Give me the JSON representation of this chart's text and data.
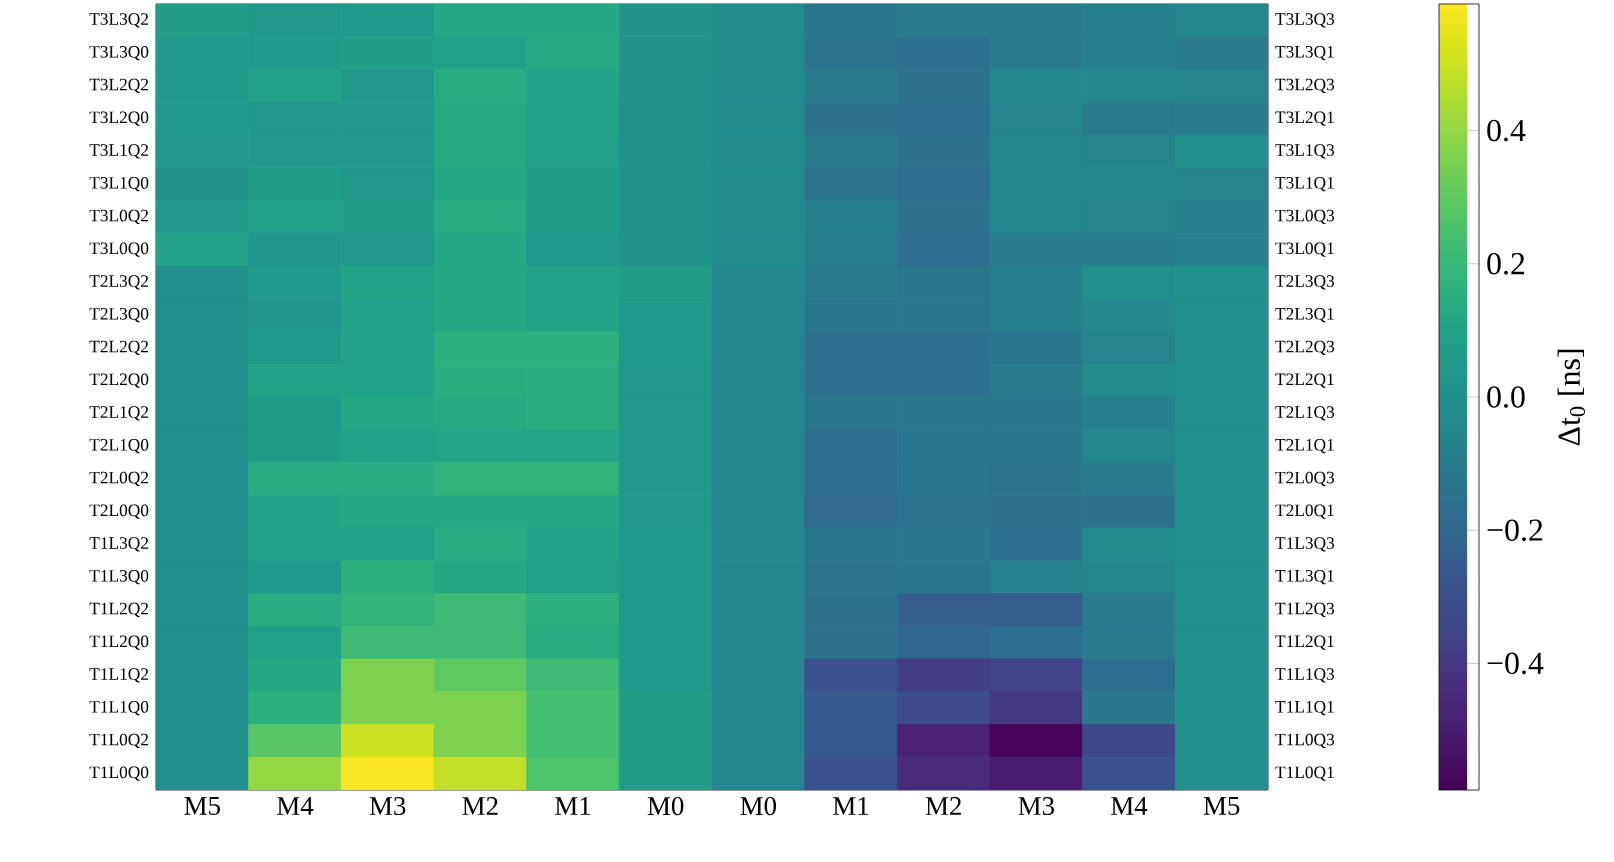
{
  "chart_data": {
    "type": "heatmap",
    "categories": [
      "M5",
      "M4",
      "M3",
      "M2",
      "M1",
      "M0",
      "M0",
      "M1",
      "M2",
      "M3",
      "M4",
      "M5"
    ],
    "y_categories": [
      "T3L3Q2",
      "T3L3Q0",
      "T3L2Q2",
      "T3L2Q0",
      "T3L1Q2",
      "T3L1Q0",
      "T3L0Q2",
      "T3L0Q0",
      "T2L3Q2",
      "T2L3Q0",
      "T2L2Q2",
      "T2L2Q0",
      "T2L1Q2",
      "T2L1Q0",
      "T2L0Q2",
      "T2L0Q0",
      "T1L3Q2",
      "T1L3Q0",
      "T1L2Q2",
      "T1L2Q0",
      "T1L1Q2",
      "T1L1Q0",
      "T1L0Q2",
      "T1L0Q0"
    ],
    "y2_categories": [
      "T3L3Q3",
      "T3L3Q1",
      "T3L2Q3",
      "T3L2Q1",
      "T3L1Q3",
      "T3L1Q1",
      "T3L0Q3",
      "T3L0Q1",
      "T2L3Q3",
      "T2L3Q1",
      "T2L2Q3",
      "T2L2Q1",
      "T2L1Q3",
      "T2L1Q1",
      "T2L0Q3",
      "T2L0Q1",
      "T1L3Q3",
      "T1L3Q1",
      "T1L2Q3",
      "T1L2Q1",
      "T1L1Q3",
      "T1L1Q1",
      "T1L0Q3",
      "T1L0Q1"
    ],
    "cells": [
      [
        0.06,
        0.04,
        0.05,
        0.12,
        0.12,
        0.02,
        -0.02,
        -0.12,
        -0.1,
        -0.1,
        -0.08,
        -0.05
      ],
      [
        0.05,
        0.05,
        0.07,
        0.08,
        0.13,
        0.02,
        -0.02,
        -0.13,
        -0.15,
        -0.1,
        -0.08,
        -0.1
      ],
      [
        0.05,
        0.08,
        0.04,
        0.14,
        0.1,
        0.01,
        -0.02,
        -0.1,
        -0.14,
        -0.04,
        -0.04,
        -0.06
      ],
      [
        0.05,
        0.04,
        0.04,
        0.13,
        0.09,
        0.01,
        -0.02,
        -0.14,
        -0.16,
        -0.06,
        -0.1,
        -0.1
      ],
      [
        0.04,
        0.04,
        0.04,
        0.13,
        0.08,
        0.01,
        -0.02,
        -0.1,
        -0.14,
        -0.05,
        -0.06,
        0.0
      ],
      [
        0.02,
        0.07,
        0.04,
        0.12,
        0.07,
        0.01,
        -0.02,
        -0.13,
        -0.17,
        -0.05,
        -0.05,
        -0.06
      ],
      [
        0.04,
        0.08,
        0.07,
        0.14,
        0.07,
        0.01,
        -0.02,
        -0.08,
        -0.14,
        -0.05,
        -0.06,
        -0.08
      ],
      [
        0.1,
        0.03,
        0.04,
        0.12,
        0.05,
        0.01,
        -0.02,
        -0.09,
        -0.17,
        -0.1,
        -0.1,
        -0.08
      ],
      [
        0.0,
        0.05,
        0.1,
        0.12,
        0.1,
        0.06,
        -0.05,
        -0.1,
        -0.12,
        -0.08,
        0.0,
        0.0
      ],
      [
        0.0,
        0.03,
        0.08,
        0.12,
        0.1,
        0.05,
        -0.05,
        -0.12,
        -0.12,
        -0.08,
        -0.04,
        0.0
      ],
      [
        0.0,
        0.05,
        0.08,
        0.16,
        0.16,
        0.05,
        -0.05,
        -0.15,
        -0.15,
        -0.12,
        -0.06,
        0.0
      ],
      [
        0.0,
        0.1,
        0.1,
        0.15,
        0.15,
        0.04,
        -0.05,
        -0.15,
        -0.15,
        -0.1,
        -0.02,
        0.0
      ],
      [
        0.0,
        0.07,
        0.12,
        0.13,
        0.15,
        0.04,
        -0.05,
        -0.12,
        -0.12,
        -0.12,
        -0.08,
        0.0
      ],
      [
        0.0,
        0.07,
        0.1,
        0.11,
        0.11,
        0.04,
        -0.05,
        -0.16,
        -0.12,
        -0.12,
        -0.05,
        0.0
      ],
      [
        0.0,
        0.14,
        0.14,
        0.18,
        0.18,
        0.04,
        -0.05,
        -0.16,
        -0.12,
        -0.13,
        -0.1,
        0.0
      ],
      [
        0.0,
        0.1,
        0.12,
        0.12,
        0.12,
        0.04,
        -0.05,
        -0.18,
        -0.13,
        -0.14,
        -0.14,
        0.0
      ],
      [
        0.0,
        0.08,
        0.08,
        0.14,
        0.1,
        0.05,
        -0.05,
        -0.12,
        -0.12,
        -0.15,
        -0.03,
        0.0
      ],
      [
        0.0,
        0.05,
        0.16,
        0.12,
        0.08,
        0.05,
        -0.05,
        -0.13,
        -0.12,
        -0.07,
        -0.05,
        0.0
      ],
      [
        0.0,
        0.14,
        0.18,
        0.22,
        0.16,
        0.05,
        -0.05,
        -0.14,
        -0.24,
        -0.24,
        -0.1,
        0.0
      ],
      [
        0.0,
        0.08,
        0.22,
        0.22,
        0.14,
        0.05,
        -0.05,
        -0.14,
        -0.2,
        -0.16,
        -0.1,
        0.0
      ],
      [
        0.0,
        0.12,
        0.36,
        0.3,
        0.22,
        0.05,
        -0.05,
        -0.3,
        -0.38,
        -0.35,
        -0.16,
        0.0
      ],
      [
        0.0,
        0.16,
        0.36,
        0.36,
        0.24,
        0.06,
        -0.05,
        -0.26,
        -0.32,
        -0.4,
        -0.12,
        0.0
      ],
      [
        0.0,
        0.28,
        0.5,
        0.36,
        0.24,
        0.06,
        -0.05,
        -0.26,
        -0.48,
        -0.58,
        -0.34,
        0.0
      ],
      [
        0.0,
        0.4,
        0.58,
        0.48,
        0.26,
        0.06,
        -0.05,
        -0.3,
        -0.44,
        -0.5,
        -0.3,
        0.0
      ]
    ],
    "clim": [
      -0.59,
      0.59
    ],
    "cticks": [
      {
        "value": -0.4,
        "label": "−0.4"
      },
      {
        "value": -0.2,
        "label": "−0.2"
      },
      {
        "value": 0.0,
        "label": "0.0"
      },
      {
        "value": 0.2,
        "label": "0.2"
      },
      {
        "value": 0.4,
        "label": "0.4"
      }
    ],
    "clabel": "Δt$_{0}$ [ns]"
  }
}
